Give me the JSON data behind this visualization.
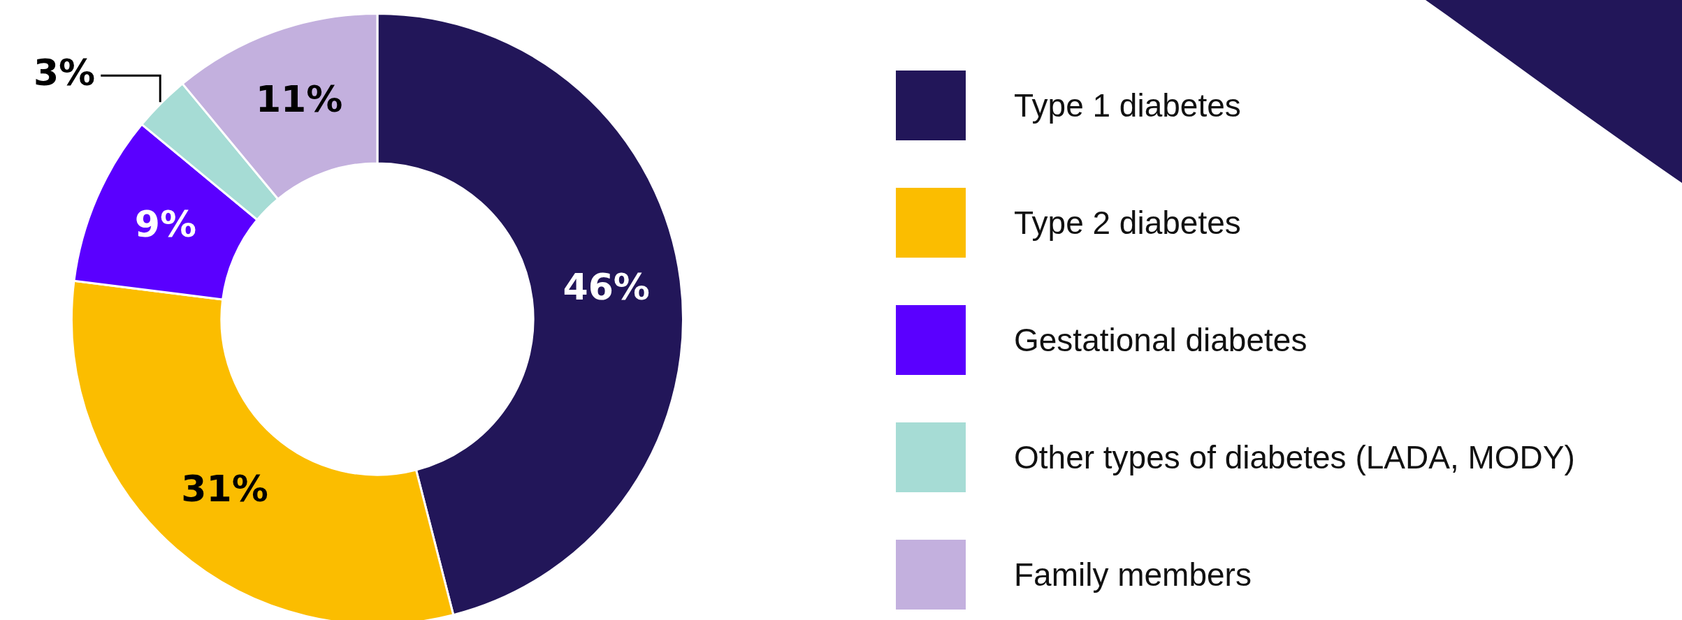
{
  "chart_data": {
    "type": "donut",
    "categories": [
      "Type 1 diabetes",
      "Type 2 diabetes",
      "Gestational diabetes",
      "Other types of diabetes (LADA, MODY)",
      "Family members"
    ],
    "values": [
      46,
      31,
      9,
      3,
      11
    ],
    "colors": [
      "#221659",
      "#fbbd00",
      "#5a00ff",
      "#a6dcd5",
      "#c3b0de"
    ],
    "value_labels": [
      "46%",
      "31%",
      "9%",
      "3%",
      "11%"
    ],
    "legend": "right"
  }
}
